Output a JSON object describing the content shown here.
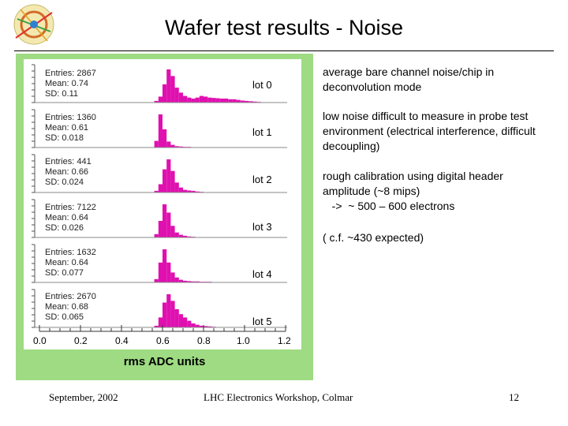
{
  "header": {
    "title": "Wafer test results - Noise"
  },
  "chart_data": {
    "type": "bar",
    "title": "Wafer test results - Noise",
    "xlabel": "rms ADC units",
    "xlim": [
      0.0,
      1.2
    ],
    "xticks": [
      "0.0",
      "0.2",
      "0.4",
      "0.6",
      "0.8",
      "1.0",
      "1.2"
    ],
    "bin_edges": [
      0.56,
      0.58,
      0.6,
      0.62,
      0.64,
      0.66,
      0.68,
      0.7,
      0.72,
      0.74,
      0.76,
      0.78,
      0.8,
      0.82,
      0.84,
      0.86,
      0.88,
      0.9,
      0.92,
      0.94,
      0.96,
      0.98,
      1.0,
      1.02,
      1.04,
      1.06,
      1.08,
      1.1
    ],
    "series": [
      {
        "name": "lot 0",
        "entries": "2867",
        "mean": "0.74",
        "sd": "0.11",
        "relative_heights": [
          0.05,
          0.18,
          0.55,
          1.0,
          0.8,
          0.45,
          0.3,
          0.2,
          0.15,
          0.12,
          0.15,
          0.2,
          0.18,
          0.15,
          0.14,
          0.13,
          0.12,
          0.12,
          0.1,
          0.1,
          0.08,
          0.06,
          0.05,
          0.04,
          0.03,
          0.02,
          0.01
        ]
      },
      {
        "name": "lot 1",
        "entries": "1360",
        "mean": "0.61",
        "sd": "0.018",
        "relative_heights": [
          0.2,
          1.0,
          0.55,
          0.18,
          0.08,
          0.04,
          0.03,
          0.02,
          0.02,
          0.01,
          0.01,
          0,
          0,
          0,
          0,
          0,
          0,
          0,
          0,
          0,
          0,
          0,
          0,
          0,
          0,
          0,
          0
        ]
      },
      {
        "name": "lot 2",
        "entries": "441",
        "mean": "0.66",
        "sd": "0.024",
        "relative_heights": [
          0.05,
          0.25,
          0.7,
          1.0,
          0.65,
          0.3,
          0.15,
          0.08,
          0.06,
          0.05,
          0.03,
          0.02,
          0.01,
          0,
          0,
          0,
          0,
          0,
          0,
          0,
          0,
          0,
          0,
          0,
          0,
          0,
          0
        ]
      },
      {
        "name": "lot 3",
        "entries": "7122",
        "mean": "0.64",
        "sd": "0.026",
        "relative_heights": [
          0.1,
          0.5,
          1.0,
          0.75,
          0.35,
          0.15,
          0.08,
          0.05,
          0.03,
          0.02,
          0.01,
          0,
          0,
          0,
          0,
          0,
          0,
          0,
          0,
          0,
          0,
          0,
          0,
          0,
          0,
          0,
          0
        ]
      },
      {
        "name": "lot 4",
        "entries": "1632",
        "mean": "0.64",
        "sd": "0.077",
        "relative_heights": [
          0.1,
          0.6,
          1.0,
          0.6,
          0.3,
          0.15,
          0.08,
          0.05,
          0.04,
          0.03,
          0.03,
          0.02,
          0.02,
          0.02,
          0.01,
          0.01,
          0.01,
          0.01,
          0,
          0,
          0,
          0,
          0,
          0,
          0,
          0,
          0
        ]
      },
      {
        "name": "lot 5",
        "entries": "2670",
        "mean": "0.68",
        "sd": "0.065",
        "relative_heights": [
          0.05,
          0.3,
          0.75,
          1.0,
          0.8,
          0.55,
          0.4,
          0.3,
          0.2,
          0.12,
          0.08,
          0.05,
          0.04,
          0.03,
          0.02,
          0.01,
          0.01,
          0,
          0,
          0,
          0,
          0,
          0,
          0,
          0,
          0,
          0
        ]
      }
    ],
    "stat_labels": {
      "entries": "Entries:",
      "mean": "Mean:",
      "sd": "SD:"
    }
  },
  "notes": [
    {
      "text": "average bare channel noise/chip  in deconvolution mode"
    },
    {
      "text": "low noise difficult to measure in probe test environment (electrical interference, difficult decoupling)"
    },
    {
      "text": "rough calibration using digital header amplitude (~8 mips)"
    },
    {
      "text": "   ->  ~ 500 – 600 electrons"
    },
    {
      "text": "( c.f. ~430 expected)"
    }
  ],
  "footer": {
    "date": "September, 2002",
    "event": "LHC Electronics Workshop, Colmar",
    "page": "12"
  },
  "colors": {
    "bar": "#e010b0",
    "panel": "#9edb83"
  }
}
